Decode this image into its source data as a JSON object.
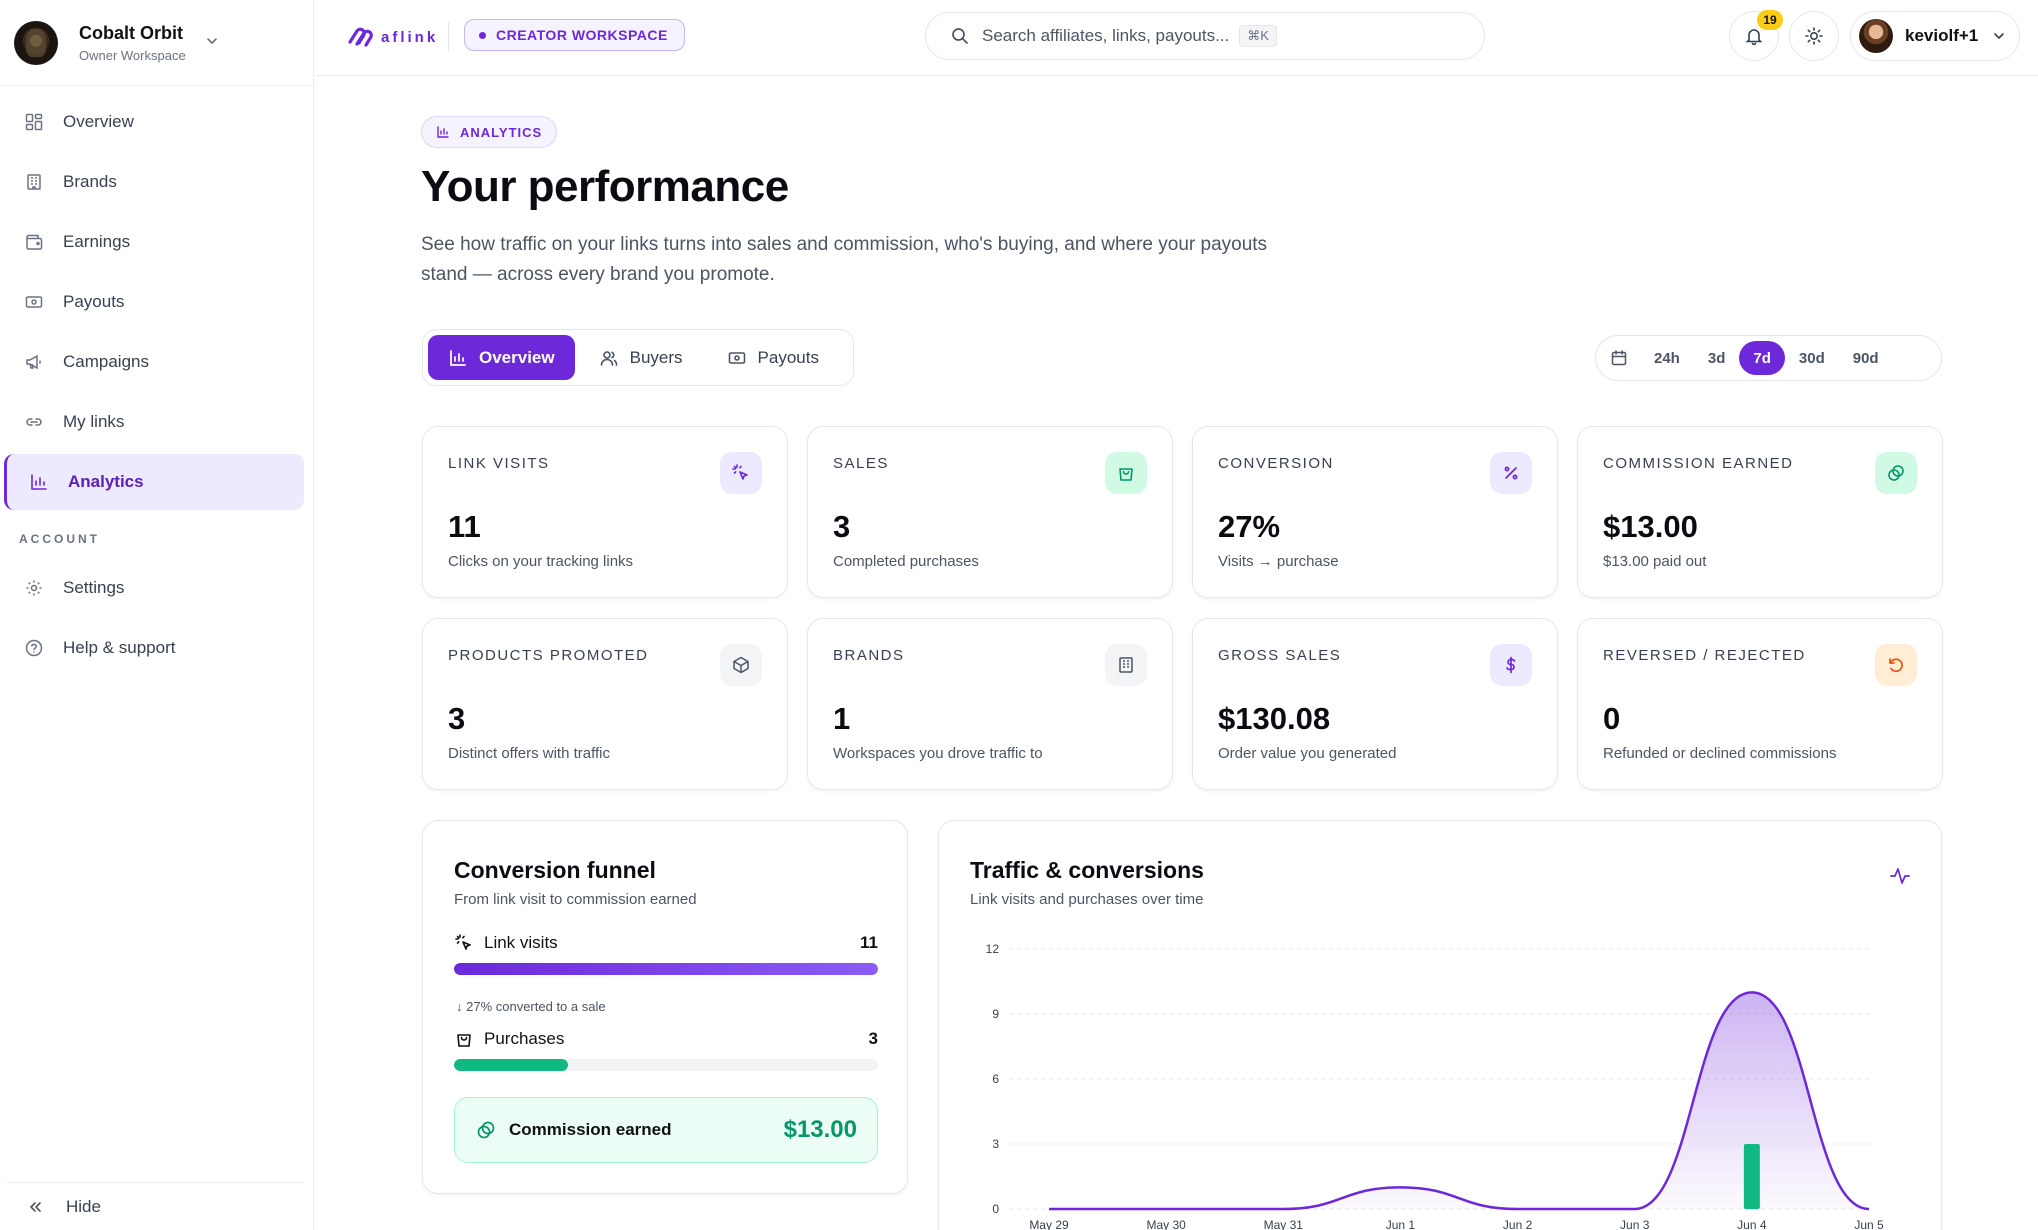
{
  "workspace": {
    "name": "Cobalt Orbit",
    "role": "Owner Workspace"
  },
  "sidebar": {
    "items": [
      {
        "label": "Overview",
        "icon": "grid-icon"
      },
      {
        "label": "Brands",
        "icon": "building-icon"
      },
      {
        "label": "Earnings",
        "icon": "wallet-icon"
      },
      {
        "label": "Payouts",
        "icon": "banknote-icon"
      },
      {
        "label": "Campaigns",
        "icon": "megaphone-icon"
      },
      {
        "label": "My links",
        "icon": "link-icon"
      },
      {
        "label": "Analytics",
        "icon": "bar-chart-icon"
      }
    ],
    "account_label": "ACCOUNT",
    "account_items": [
      {
        "label": "Settings",
        "icon": "gear-icon"
      },
      {
        "label": "Help & support",
        "icon": "help-circle-icon"
      }
    ],
    "hide_label": "Hide"
  },
  "header": {
    "logo_text": "aflink",
    "workspace_badge": "CREATOR WORKSPACE",
    "search_placeholder": "Search affiliates, links, payouts...",
    "search_shortcut": "⌘K",
    "notification_count": "19",
    "user_name": "keviolf+1"
  },
  "page": {
    "badge": "ANALYTICS",
    "title": "Your performance",
    "description": "See how traffic on your links turns into sales and commission, who's buying, and where your payouts stand — across every brand you promote."
  },
  "tabs": [
    {
      "label": "Overview",
      "active": true
    },
    {
      "label": "Buyers",
      "active": false
    },
    {
      "label": "Payouts",
      "active": false
    }
  ],
  "range_options": [
    "24h",
    "3d",
    "7d",
    "30d",
    "90d"
  ],
  "range_selected": "7d",
  "stats": [
    {
      "label": "LINK VISITS",
      "value": "11",
      "sub": "Clicks on your tracking links",
      "icon": "cursor-click-icon",
      "color": "#6d28d9",
      "bg": "#ede9fe"
    },
    {
      "label": "SALES",
      "value": "3",
      "sub": "Completed purchases",
      "icon": "shopping-bag-icon",
      "color": "#059669",
      "bg": "#d1fae5"
    },
    {
      "label": "CONVERSION",
      "value": "27%",
      "sub": "Visits → purchase",
      "icon": "percent-icon",
      "color": "#6d28d9",
      "bg": "#ede9fe"
    },
    {
      "label": "COMMISSION EARNED",
      "value": "$13.00",
      "sub": "$13.00 paid out",
      "icon": "coins-icon",
      "color": "#059669",
      "bg": "#d1fae5"
    },
    {
      "label": "PRODUCTS PROMOTED",
      "value": "3",
      "sub": "Distinct offers with traffic",
      "icon": "package-icon",
      "color": "#4b5563",
      "bg": "#f3f4f6"
    },
    {
      "label": "BRANDS",
      "value": "1",
      "sub": "Workspaces you drove traffic to",
      "icon": "building-icon",
      "color": "#4b5563",
      "bg": "#f3f4f6"
    },
    {
      "label": "GROSS SALES",
      "value": "$130.08",
      "sub": "Order value you generated",
      "icon": "dollar-icon",
      "color": "#6d28d9",
      "bg": "#ede9fe"
    },
    {
      "label": "REVERSED / REJECTED",
      "value": "0",
      "sub": "Refunded or declined commissions",
      "icon": "rotate-ccw-icon",
      "color": "#ea580c",
      "bg": "#ffedd5"
    }
  ],
  "funnel": {
    "title": "Conversion funnel",
    "subtitle": "From link visit to commission earned",
    "visits_label": "Link visits",
    "visits_value": "11",
    "visits_fraction": 1.0,
    "note": "↓ 27% converted to a sale",
    "purchases_label": "Purchases",
    "purchases_value": "3",
    "purchases_fraction": 0.27,
    "commission_label": "Commission earned",
    "commission_value": "$13.00"
  },
  "traffic": {
    "title": "Traffic & conversions",
    "subtitle": "Link visits and purchases over time"
  },
  "colors": {
    "accent": "#6d28d9",
    "accent_light": "#ede9fe",
    "success": "#10b981",
    "success_dark": "#059669"
  },
  "chart_data": {
    "type": "area",
    "title": "Traffic & conversions",
    "categories": [
      "May 29",
      "May 30",
      "May 31",
      "Jun 1",
      "Jun 2",
      "Jun 3",
      "Jun 4",
      "Jun 5"
    ],
    "series": [
      {
        "type": "area",
        "color": "#6d28d9",
        "values": [
          0,
          0,
          0,
          1,
          0,
          0,
          10,
          0
        ]
      },
      {
        "type": "bar",
        "color": "#10b981",
        "values": [
          0,
          0,
          0,
          0,
          0,
          0,
          3,
          0
        ]
      }
    ],
    "y_ticks": [
      0,
      3,
      6,
      9,
      12
    ],
    "ylim": [
      0,
      12
    ],
    "grid": true
  }
}
